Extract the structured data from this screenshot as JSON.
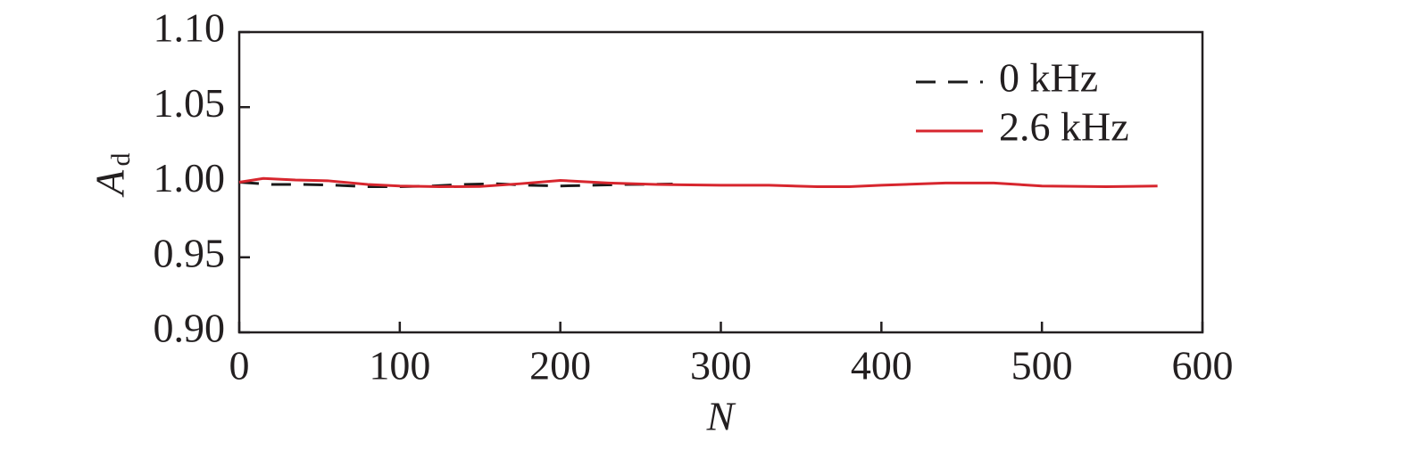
{
  "chart_data": {
    "type": "line",
    "xlabel": "N",
    "ylabel": "A",
    "ylabel_subscript": "d",
    "xlim": [
      0,
      600
    ],
    "xticks": [
      0,
      100,
      200,
      300,
      400,
      500,
      600
    ],
    "ylim": [
      0.9,
      1.1
    ],
    "yticks": [
      {
        "value": 0.9,
        "label": "0.90"
      },
      0.95,
      {
        "value": 1.0,
        "label": "1.00"
      },
      1.05,
      {
        "value": 1.1,
        "label": "1.10"
      }
    ],
    "legend": "upper right",
    "series": [
      {
        "name": "0 kHz",
        "color": "#1a1a1a",
        "dash": true,
        "x": [
          0,
          20,
          40,
          60,
          80,
          100,
          120,
          140,
          160,
          180,
          200,
          220,
          240,
          270
        ],
        "values": [
          1.0,
          0.9985,
          0.9985,
          0.998,
          0.997,
          0.997,
          0.9975,
          0.9985,
          0.999,
          0.998,
          0.9975,
          0.998,
          0.9985,
          0.9988
        ]
      },
      {
        "name": "2.6 kHz",
        "color": "#d7262e",
        "dash": false,
        "x": [
          0,
          15,
          35,
          55,
          80,
          100,
          125,
          150,
          175,
          200,
          230,
          260,
          300,
          330,
          360,
          380,
          400,
          440,
          470,
          500,
          540,
          572
        ],
        "values": [
          1.0,
          1.0025,
          1.0015,
          1.001,
          0.9985,
          0.9975,
          0.997,
          0.9972,
          0.999,
          1.0012,
          0.9995,
          0.9985,
          0.998,
          0.998,
          0.997,
          0.997,
          0.998,
          0.9995,
          0.9995,
          0.9975,
          0.997,
          0.9975
        ]
      }
    ]
  }
}
